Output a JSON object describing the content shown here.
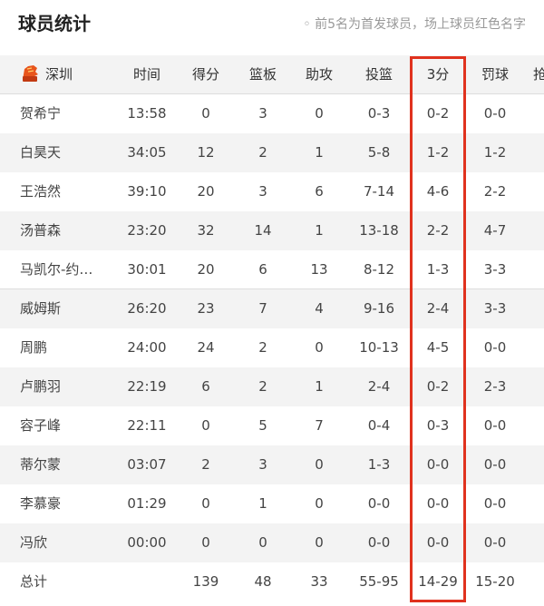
{
  "title": "球员统计",
  "note": "◦ 前5名为首发球员，场上球员红色名字",
  "team": {
    "name": "深圳",
    "logo_icon": "tiger-logo-icon"
  },
  "highlight_color": "#e0321e",
  "headers": [
    "时间",
    "得分",
    "篮板",
    "助攻",
    "投篮",
    "3分",
    "罚球",
    "抢"
  ],
  "players": [
    [
      "贺希宁",
      "13:58",
      "0",
      "3",
      "0",
      "0-3",
      "0-2",
      "0-0"
    ],
    [
      "白昊天",
      "34:05",
      "12",
      "2",
      "1",
      "5-8",
      "1-2",
      "1-2"
    ],
    [
      "王浩然",
      "39:10",
      "20",
      "3",
      "6",
      "7-14",
      "4-6",
      "2-2"
    ],
    [
      "汤普森",
      "23:20",
      "32",
      "14",
      "1",
      "13-18",
      "2-2",
      "4-7"
    ],
    [
      "马凯尔-约…",
      "30:01",
      "20",
      "6",
      "13",
      "8-12",
      "1-3",
      "3-3"
    ],
    [
      "威姆斯",
      "26:20",
      "23",
      "7",
      "4",
      "9-16",
      "2-4",
      "3-3"
    ],
    [
      "周鹏",
      "24:00",
      "24",
      "2",
      "0",
      "10-13",
      "4-5",
      "0-0"
    ],
    [
      "卢鹏羽",
      "22:19",
      "6",
      "2",
      "1",
      "2-4",
      "0-2",
      "2-3"
    ],
    [
      "容子峰",
      "22:11",
      "0",
      "5",
      "7",
      "0-4",
      "0-3",
      "0-0"
    ],
    [
      "蒂尔蒙",
      "03:07",
      "2",
      "3",
      "0",
      "1-3",
      "0-0",
      "0-0"
    ],
    [
      "李慕豪",
      "01:29",
      "0",
      "1",
      "0",
      "0-0",
      "0-0",
      "0-0"
    ],
    [
      "冯欣",
      "00:00",
      "0",
      "0",
      "0",
      "0-0",
      "0-0",
      "0-0"
    ]
  ],
  "totals": [
    "总计",
    "",
    "139",
    "48",
    "33",
    "55-95",
    "14-29",
    "15-20"
  ]
}
